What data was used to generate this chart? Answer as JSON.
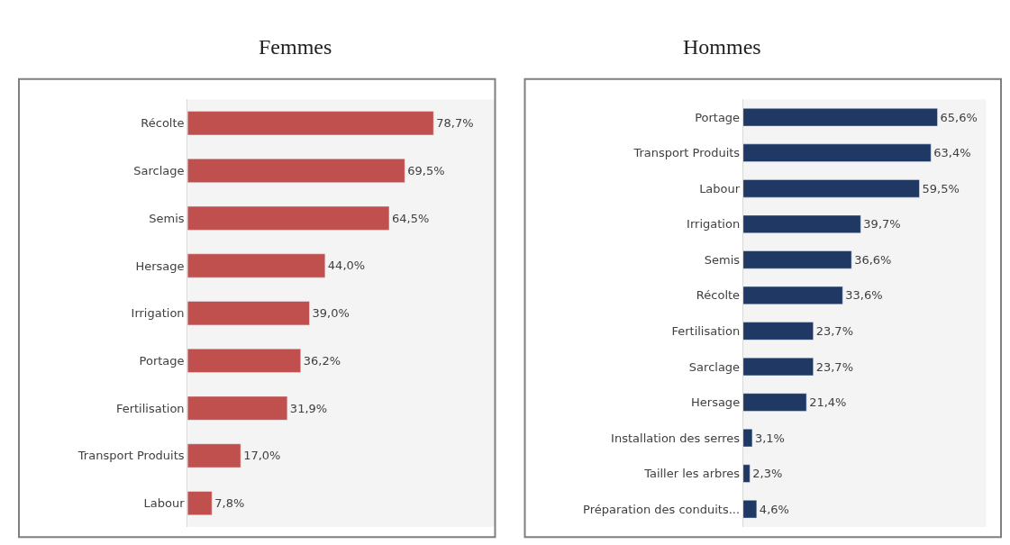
{
  "chart_data": [
    {
      "type": "bar",
      "orientation": "horizontal",
      "title": "Femmes",
      "categories": [
        "Récolte",
        "Sarclage",
        "Semis",
        "Hersage",
        "Irrigation",
        "Portage",
        "Fertilisation",
        "Transport Produits",
        "Labour"
      ],
      "values": [
        78.7,
        69.5,
        64.5,
        44.0,
        39.0,
        36.2,
        31.9,
        17.0,
        7.8
      ],
      "color": "#c0504d",
      "value_labels": [
        "78,7%",
        "69,5%",
        "64,5%",
        "44,0%",
        "39,0%",
        "36,2%",
        "31,9%",
        "17,0%",
        "7,8%"
      ]
    },
    {
      "type": "bar",
      "orientation": "horizontal",
      "title": "Hommes",
      "categories": [
        "Portage",
        "Transport Produits",
        "Labour",
        "Irrigation",
        "Semis",
        "Récolte",
        "Fertilisation",
        "Sarclage",
        "Hersage",
        "Installation des serres",
        "Tailler les arbres",
        "Préparation des conduits..."
      ],
      "values": [
        65.6,
        63.4,
        59.5,
        39.7,
        36.6,
        33.6,
        23.7,
        23.7,
        21.4,
        3.1,
        2.3,
        4.6
      ],
      "color": "#1f3864",
      "value_labels": [
        "65,6%",
        "63,4%",
        "59,5%",
        "39,7%",
        "36,6%",
        "33,6%",
        "23,7%",
        "23,7%",
        "21,4%",
        "3,1%",
        "2,3%",
        "4,6%"
      ]
    }
  ]
}
